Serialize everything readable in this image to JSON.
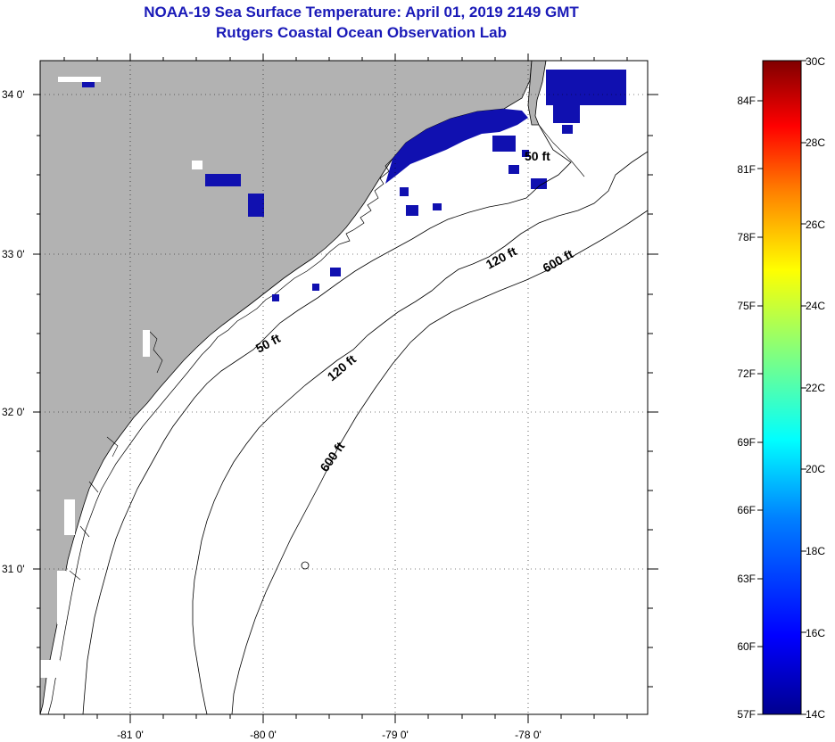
{
  "header": {
    "title": "NOAA-19 Sea Surface Temperature:  April 01, 2019 2149 GMT",
    "subtitle": "Rutgers Coastal Ocean Observation Lab"
  },
  "map": {
    "lat_labels": [
      "34 0'",
      "33 0'",
      "32 0'",
      "31 0'"
    ],
    "lon_labels": [
      "-81 0'",
      "-80 0'",
      "-79 0'",
      "-78 0'"
    ],
    "contour_labels": [
      "50 ft",
      "50 ft",
      "120 ft",
      "120 ft",
      "600 ft",
      "600 ft"
    ],
    "colors": {
      "land": "#b2b2b2",
      "ocean": "#ffffff",
      "cold_sst": "#1010b0"
    }
  },
  "colorbar": {
    "celsius_labels": [
      "30C",
      "28C",
      "26C",
      "24C",
      "22C",
      "20C",
      "18C",
      "16C",
      "14C"
    ],
    "fahrenheit_labels": [
      "84F",
      "81F",
      "78F",
      "75F",
      "72F",
      "69F",
      "66F",
      "63F",
      "60F",
      "57F"
    ],
    "colors": [
      "#00008f",
      "#0000ff",
      "#0080ff",
      "#00ffff",
      "#80ff80",
      "#ffff00",
      "#ff8000",
      "#ff0000",
      "#800000"
    ]
  }
}
